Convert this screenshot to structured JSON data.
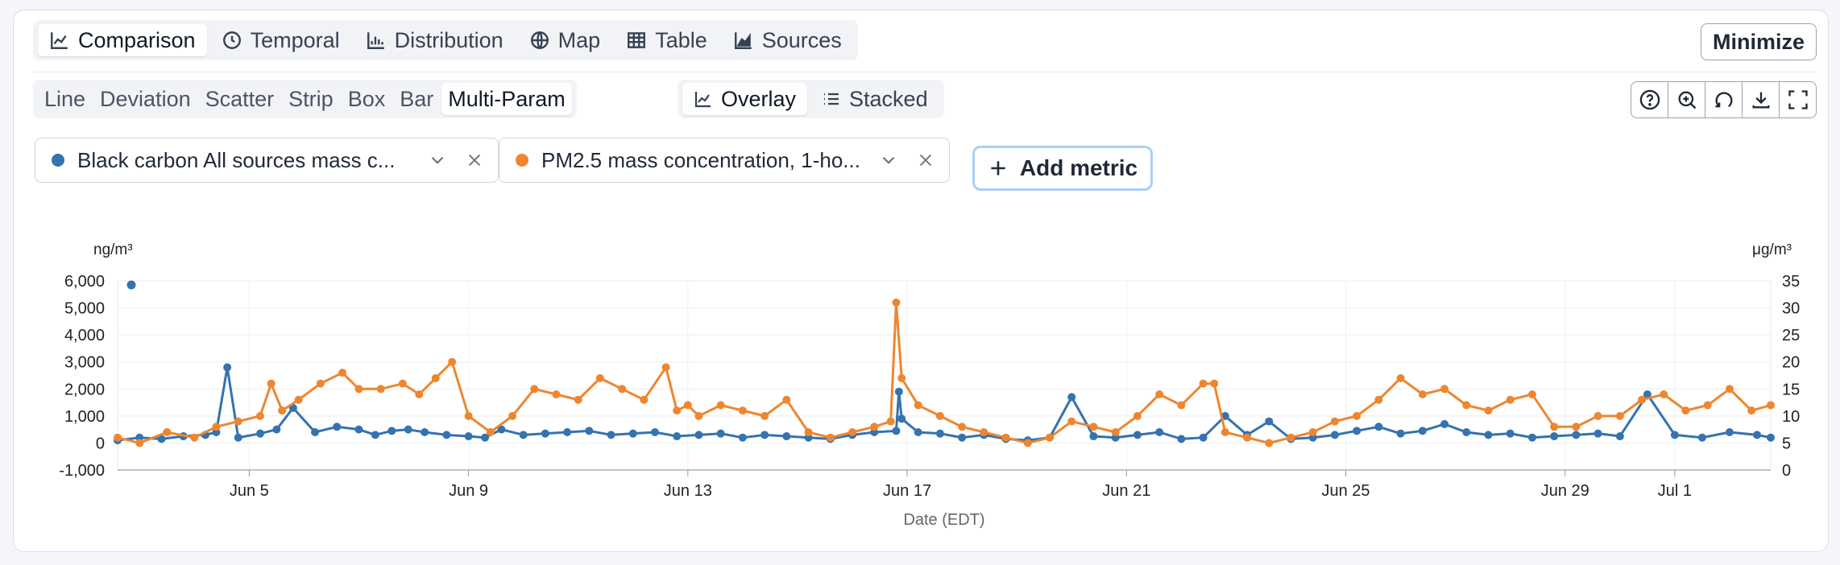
{
  "view_tabs": [
    {
      "label": "Comparison",
      "icon": "line-chart-icon",
      "active": true
    },
    {
      "label": "Temporal",
      "icon": "clock-icon",
      "active": false
    },
    {
      "label": "Distribution",
      "icon": "histogram-icon",
      "active": false
    },
    {
      "label": "Map",
      "icon": "globe-icon",
      "active": false
    },
    {
      "label": "Table",
      "icon": "table-icon",
      "active": false
    },
    {
      "label": "Sources",
      "icon": "area-chart-icon",
      "active": false
    }
  ],
  "minimize_label": "Minimize",
  "chart_types": [
    "Line",
    "Deviation",
    "Scatter",
    "Strip",
    "Box",
    "Bar",
    "Multi-Param"
  ],
  "active_chart_type": "Multi-Param",
  "layout_modes": [
    {
      "label": "Overlay",
      "icon": "line-chart-icon",
      "active": true
    },
    {
      "label": "Stacked",
      "icon": "list-icon",
      "active": false
    }
  ],
  "toolbar_icons": [
    "help-icon",
    "zoom-in-icon",
    "reset-icon",
    "download-icon",
    "fullscreen-icon"
  ],
  "metrics": [
    {
      "label": "Black carbon All sources mass c...",
      "color": "#3572b0"
    },
    {
      "label": "PM2.5 mass concentration, 1-ho...",
      "color": "#ee8630"
    }
  ],
  "add_metric_label": "Add metric",
  "chart_data": {
    "type": "line",
    "x_label": "Date (EDT)",
    "x_ticks": [
      "Jun 5",
      "Jun 9",
      "Jun 13",
      "Jun 17",
      "Jun 21",
      "Jun 25",
      "Jun 29",
      "Jul 1"
    ],
    "x_range_days": [
      2.6,
      32.75
    ],
    "x_tick_days": [
      5,
      9,
      13,
      17,
      21,
      25,
      29,
      31
    ],
    "y_left_unit": "ng/m³",
    "y_left_ticks": [
      "6,000",
      "5,000",
      "4,000",
      "3,000",
      "2,000",
      "1,000",
      "0",
      "-1,000"
    ],
    "y_left_range": [
      -1000,
      6000
    ],
    "y_right_unit": "μg/m³",
    "y_right_ticks": [
      "35",
      "30",
      "25",
      "20",
      "15",
      "10",
      "5",
      "0"
    ],
    "y_right_range": [
      0,
      35
    ],
    "grid": true,
    "series": [
      {
        "name": "Black carbon All sources mass c...",
        "axis": "left",
        "color": "#3572b0",
        "x": [
          2.6,
          3.0,
          3.4,
          3.8,
          4.2,
          4.4,
          4.6,
          4.8,
          5.2,
          5.5,
          5.8,
          6.2,
          6.6,
          7.0,
          7.3,
          7.6,
          7.9,
          8.2,
          8.6,
          9.0,
          9.3,
          9.6,
          10.0,
          10.4,
          10.8,
          11.2,
          11.6,
          12.0,
          12.4,
          12.8,
          13.2,
          13.6,
          14.0,
          14.4,
          14.8,
          15.2,
          15.6,
          16.0,
          16.4,
          16.8,
          16.85,
          16.9,
          17.2,
          17.6,
          18.0,
          18.4,
          18.8,
          19.2,
          19.6,
          20.0,
          20.4,
          20.8,
          21.2,
          21.6,
          22.0,
          22.4,
          22.8,
          23.2,
          23.6,
          24.0,
          24.4,
          24.8,
          25.2,
          25.6,
          26.0,
          26.4,
          26.8,
          27.2,
          27.6,
          28.0,
          28.4,
          28.8,
          29.2,
          29.6,
          30.0,
          30.5,
          31.0,
          31.5,
          32.0,
          32.5,
          32.75
        ],
        "y": [
          100,
          200,
          150,
          250,
          300,
          400,
          2800,
          200,
          350,
          500,
          1300,
          400,
          600,
          500,
          300,
          450,
          500,
          400,
          300,
          250,
          200,
          500,
          300,
          350,
          400,
          450,
          300,
          350,
          400,
          250,
          300,
          350,
          200,
          300,
          250,
          200,
          150,
          300,
          400,
          450,
          1900,
          900,
          400,
          350,
          200,
          300,
          150,
          100,
          200,
          1700,
          250,
          200,
          300,
          400,
          150,
          200,
          1000,
          300,
          800,
          150,
          200,
          300,
          450,
          600,
          350,
          450,
          700,
          400,
          300,
          350,
          200,
          250,
          300,
          350,
          250,
          1800,
          300,
          200,
          400,
          300,
          200
        ]
      },
      {
        "name": "PM2.5 mass concentration, 1-ho...",
        "axis": "right",
        "color": "#ee8630",
        "x": [
          2.6,
          3.0,
          3.5,
          4.0,
          4.4,
          4.8,
          5.2,
          5.4,
          5.6,
          5.9,
          6.3,
          6.7,
          7.0,
          7.4,
          7.8,
          8.1,
          8.4,
          8.7,
          9.0,
          9.4,
          9.8,
          10.2,
          10.6,
          11.0,
          11.4,
          11.8,
          12.2,
          12.6,
          12.8,
          13.0,
          13.2,
          13.6,
          14.0,
          14.4,
          14.8,
          15.2,
          15.6,
          16.0,
          16.4,
          16.7,
          16.8,
          16.9,
          17.2,
          17.6,
          18.0,
          18.4,
          18.8,
          19.2,
          19.6,
          20.0,
          20.4,
          20.8,
          21.2,
          21.6,
          22.0,
          22.4,
          22.6,
          22.8,
          23.2,
          23.6,
          24.0,
          24.4,
          24.8,
          25.2,
          25.6,
          26.0,
          26.4,
          26.8,
          27.2,
          27.6,
          28.0,
          28.4,
          28.8,
          29.2,
          29.6,
          30.0,
          30.4,
          30.8,
          31.2,
          31.6,
          32.0,
          32.4,
          32.75
        ],
        "y": [
          6,
          5,
          7,
          6,
          8,
          9,
          10,
          16,
          11,
          13,
          16,
          18,
          15,
          15,
          16,
          14,
          17,
          20,
          10,
          7,
          10,
          15,
          14,
          13,
          17,
          15,
          13,
          19,
          11,
          12,
          10,
          12,
          11,
          10,
          13,
          7,
          6,
          7,
          8,
          9,
          31,
          17,
          12,
          10,
          8,
          7,
          6,
          5,
          6,
          9,
          8,
          7,
          10,
          14,
          12,
          16,
          16,
          7,
          6,
          5,
          6,
          7,
          9,
          10,
          13,
          17,
          14,
          15,
          12,
          11,
          13,
          14,
          8,
          8,
          10,
          10,
          13,
          14,
          11,
          12,
          15,
          11,
          12
        ]
      }
    ]
  }
}
